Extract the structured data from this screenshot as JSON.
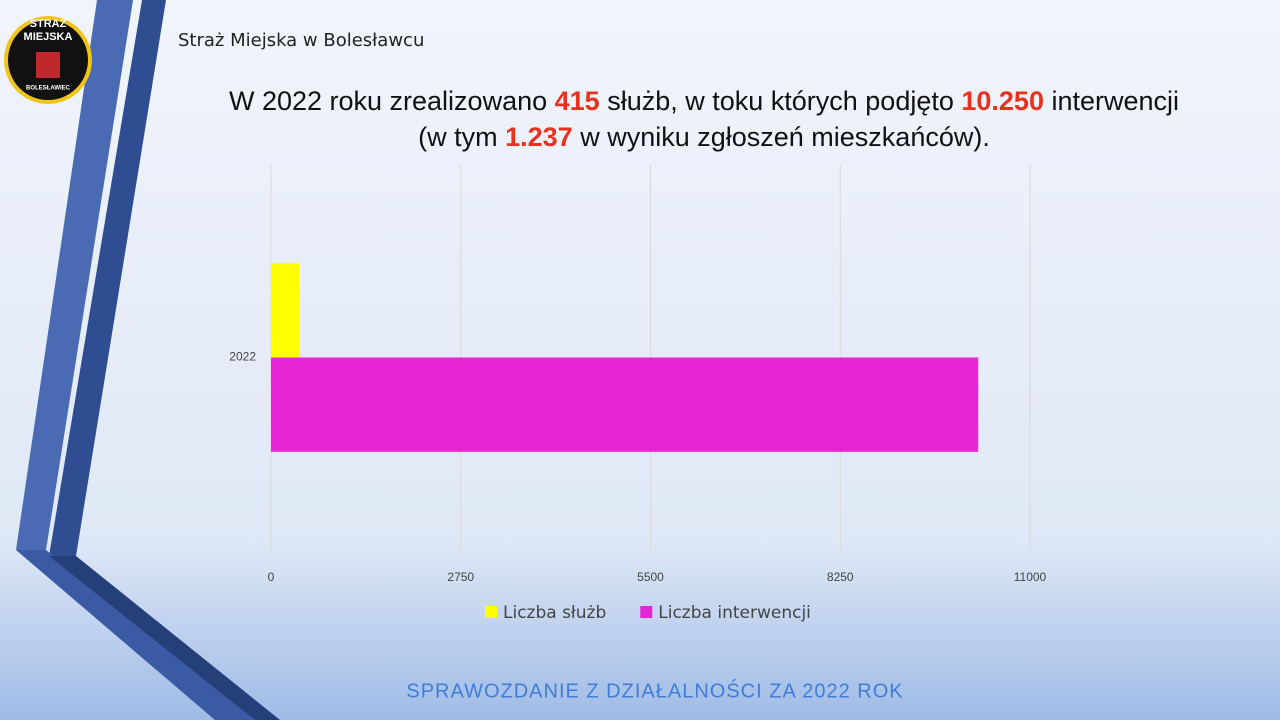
{
  "slide": {
    "header": "Straż Miejska w Bolesławcu",
    "logo": [
      "STRAŻ",
      "MIEJSKA",
      "BOLESŁAWIEC"
    ],
    "title_lines": [
      [
        {
          "text": "W 2022 roku zrealizowano ",
          "color": "#111111"
        },
        {
          "text": "415",
          "color": "#e8321e"
        },
        {
          "text": " służb, w toku których podjęto ",
          "color": "#111111"
        },
        {
          "text": "10.250",
          "color": "#e8321e"
        },
        {
          "text": " interwencji",
          "color": "#111111"
        }
      ],
      [
        {
          "text": "(w tym ",
          "color": "#111111"
        },
        {
          "text": "1.237",
          "color": "#e8321e"
        },
        {
          "text": " w wyniku zgłoszeń  mieszkańców).",
          "color": "#111111"
        }
      ]
    ],
    "footer": "SPRAWOZDANIE Z DZIAŁALNOŚCI ZA 2022 ROK"
  },
  "chart_data": {
    "type": "hbar",
    "categories": [
      "2022"
    ],
    "series": [
      {
        "name": "Liczba służb",
        "color": "#ffff00",
        "values": [
          415
        ]
      },
      {
        "name": "Liczba interwencji",
        "color": "#e626d5",
        "values": [
          10250
        ]
      }
    ],
    "xlim": [
      0,
      11000
    ],
    "xticks": [
      0,
      2750,
      5500,
      8250,
      11000
    ],
    "grid": true,
    "legend": "bottom"
  }
}
